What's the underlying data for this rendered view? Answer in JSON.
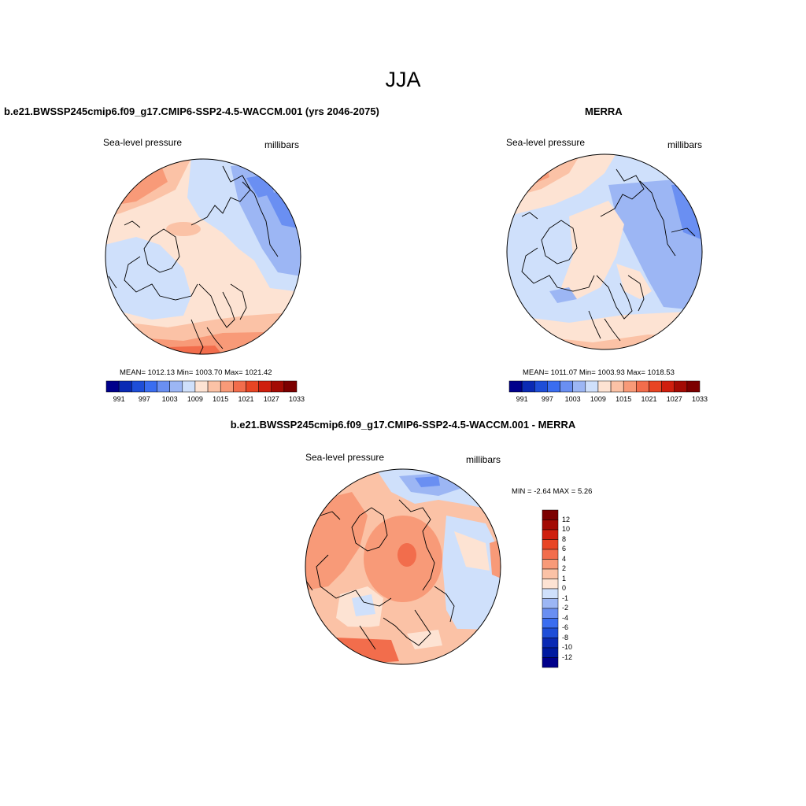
{
  "title": "JJA",
  "colors": {
    "palette": [
      "#00008b",
      "#0a2ab4",
      "#1e4ed8",
      "#3a6df0",
      "#6a8ff2",
      "#9cb6f4",
      "#cfe0fb",
      "#fde3d3",
      "#fbc2a6",
      "#f89a78",
      "#f26d4c",
      "#e84524",
      "#cf1f0e",
      "#a30b04",
      "#7c0000"
    ],
    "coast": "#000000"
  },
  "panels": [
    {
      "title": "b.e21.BWSSP245cmip6.f09_g17.CMIP6-SSP2-4.5-WACCM.001 (yrs 2046-2075)",
      "variable": "Sea-level pressure",
      "units": "millibars",
      "stats": "MEAN= 1012.13  Min= 1003.70  Max= 1021.42",
      "colorbar_ticks": [
        "991",
        "997",
        "1003",
        "1009",
        "1015",
        "1021",
        "1027",
        "1033"
      ]
    },
    {
      "title": "MERRA",
      "variable": "Sea-level pressure",
      "units": "millibars",
      "stats": "MEAN= 1011.07  Min= 1003.93  Max= 1018.53",
      "colorbar_ticks": [
        "991",
        "997",
        "1003",
        "1009",
        "1015",
        "1021",
        "1027",
        "1033"
      ]
    }
  ],
  "difference": {
    "title": "b.e21.BWSSP245cmip6.f09_g17.CMIP6-SSP2-4.5-WACCM.001 - MERRA",
    "variable": "Sea-level pressure",
    "units": "millibars",
    "stats": "MIN =  -2.64 MAX =   5.26",
    "colorbar_ticks": [
      "12",
      "10",
      "8",
      "6",
      "4",
      "2",
      "1",
      "0",
      "-1",
      "-2",
      "-4",
      "-6",
      "-8",
      "-10",
      "-12"
    ]
  }
}
